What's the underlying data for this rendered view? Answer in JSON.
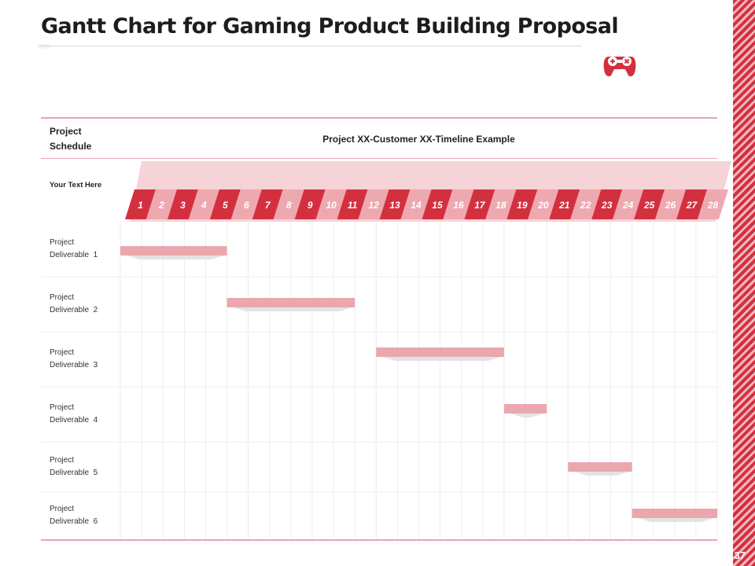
{
  "title": "Gantt Chart for Gaming Product Building Proposal",
  "page_number": "37",
  "colors": {
    "accent": "#d3303f",
    "accent_light": "#f2c9cd",
    "bar": "#eba7ae"
  },
  "chart_data": {
    "type": "gantt",
    "header_left": "Project Schedule",
    "header_center": "Project XX-Customer XX-Timeline Example",
    "subheader_left": "Your Text Here",
    "timeline_units": [
      "1",
      "2",
      "3",
      "4",
      "5",
      "6",
      "7",
      "8",
      "9",
      "10",
      "11",
      "12",
      "13",
      "14",
      "15",
      "16",
      "17",
      "18",
      "19",
      "20",
      "21",
      "22",
      "23",
      "24",
      "25",
      "26",
      "27",
      "28"
    ],
    "tasks": [
      {
        "name": "Project Deliverable 1",
        "start": 1,
        "end": 5
      },
      {
        "name": "Project Deliverable 2",
        "start": 6,
        "end": 11
      },
      {
        "name": "Project Deliverable 3",
        "start": 13,
        "end": 18
      },
      {
        "name": "Project Deliverable 4",
        "start": 19,
        "end": 20
      },
      {
        "name": "Project Deliverable 5",
        "start": 22,
        "end": 24
      },
      {
        "name": "Project Deliverable 6",
        "start": 25,
        "end": 28
      }
    ]
  }
}
